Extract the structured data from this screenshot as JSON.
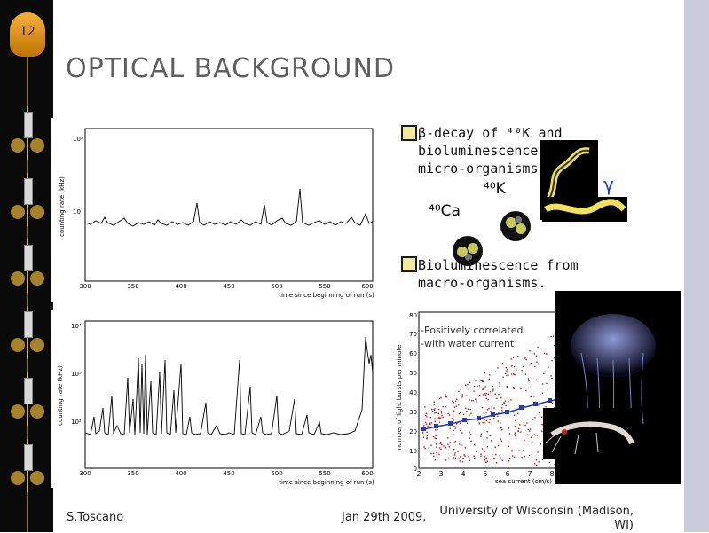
{
  "slide": {
    "number": "12",
    "title": "OPTICAL BACKGROUND"
  },
  "plots": {
    "top": {
      "ylabel": "counting rate (kHz)",
      "xlabel": "time since beginning of run (s)",
      "y_ticks": [
        "10²",
        "10"
      ],
      "x_ticks": [
        "300",
        "350",
        "400",
        "450",
        "500",
        "550",
        "600"
      ]
    },
    "bottom": {
      "ylabel": "counting rate (kHz)",
      "xlabel": "time since beginning of run (s)",
      "y_ticks": [
        "10⁴",
        "10³",
        "10²"
      ],
      "x_ticks": [
        "300",
        "350",
        "400",
        "450",
        "500",
        "550",
        "600"
      ]
    }
  },
  "bullets": [
    {
      "line1": "β-decay of ⁴⁰K and",
      "line2": "bioluminescence",
      "line3": "micro-organisms"
    },
    {
      "line1": "Bioluminescence from",
      "line2": "macro-organisms."
    }
  ],
  "decay": {
    "parent": "⁴⁰K",
    "daughter": "⁴⁰Ca",
    "gamma": "γ"
  },
  "scatter": {
    "annotation_line1": "-Positively correlated",
    "annotation_line2": "-with water current",
    "ylabel": "number of light bursts per minute",
    "xlabel": "sea current (cm/s)",
    "y_ticks": [
      "80",
      "70",
      "60",
      "50",
      "40",
      "30",
      "20",
      "10",
      "0"
    ],
    "x_ticks": [
      "2",
      "3",
      "4",
      "5",
      "6",
      "7",
      "8"
    ]
  },
  "footer": {
    "author": "S.Toscano",
    "date": "Jan 29th 2009,",
    "institution_line1": "University of Wisconsin  (Madison,",
    "institution_line2": "WI)"
  },
  "colors": {
    "accent": "#f2e9a0",
    "gamma": "#1a3ad0",
    "scatter_points": "#d01010",
    "trend": "#1a3ad0"
  }
}
